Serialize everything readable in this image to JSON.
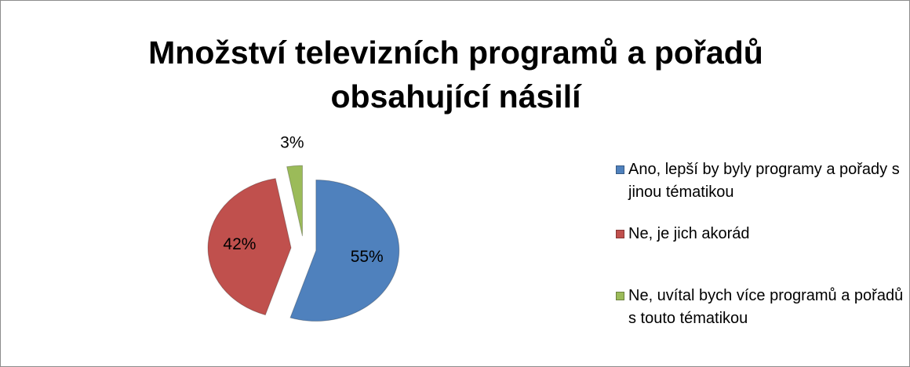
{
  "chart_data": {
    "type": "pie",
    "title": "Množství televizních programů a pořadů obsahující násilí",
    "categories": [
      "Ano, lepší by byly programy a pořady s jinou tématikou",
      "Ne, je jich akorád",
      "Ne, uvítal bych více programů a pořadů s touto tématikou"
    ],
    "values": [
      55,
      42,
      3
    ],
    "value_labels": [
      "55%",
      "42%",
      "3%"
    ],
    "colors": [
      "#4f81bd",
      "#c0504d",
      "#9bbb59"
    ],
    "legend": "right"
  }
}
